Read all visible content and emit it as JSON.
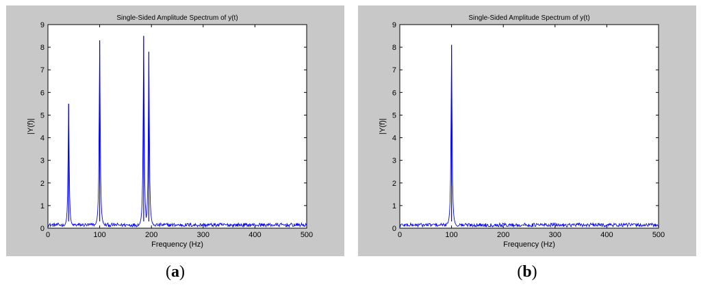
{
  "chart_data": [
    {
      "type": "line",
      "title": "Single-Sided Amplitude Spectrum of y(t)",
      "xlabel": "Frequency (Hz)",
      "ylabel": "|Y(f)|",
      "xlim": [
        0,
        500
      ],
      "ylim": [
        0,
        9
      ],
      "xticks": [
        0,
        100,
        200,
        300,
        400,
        500
      ],
      "yticks": [
        0,
        1,
        2,
        3,
        4,
        5,
        6,
        7,
        8,
        9
      ],
      "grid": false,
      "line_color": "#0000ff",
      "noise_floor": 0.15,
      "peaks": [
        {
          "x": 40,
          "y": 5.5
        },
        {
          "x": 100,
          "y": 8.3
        },
        {
          "x": 185,
          "y": 8.5
        },
        {
          "x": 195,
          "y": 7.8
        }
      ],
      "caption_letter": "a"
    },
    {
      "type": "line",
      "title": "Single-Sided Amplitude Spectrum of y(t)",
      "xlabel": "Frequency (Hz)",
      "ylabel": "|Y(f)|",
      "xlim": [
        0,
        500
      ],
      "ylim": [
        0,
        9
      ],
      "xticks": [
        0,
        100,
        200,
        300,
        400,
        500
      ],
      "yticks": [
        0,
        1,
        2,
        3,
        4,
        5,
        6,
        7,
        8,
        9
      ],
      "grid": false,
      "line_color": "#0000ff",
      "noise_floor": 0.15,
      "peaks": [
        {
          "x": 100,
          "y": 8.1
        }
      ],
      "caption_letter": "b"
    }
  ]
}
